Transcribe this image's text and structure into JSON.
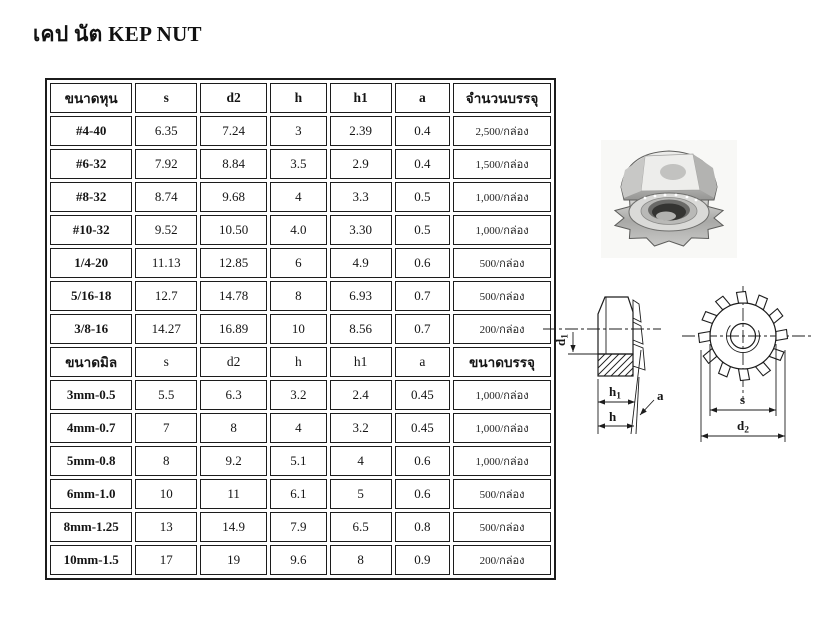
{
  "title": {
    "text": "เคป นัต KEP NUT"
  },
  "table": {
    "imperial": {
      "headers": [
        "ขนาดหุน",
        "s",
        "d2",
        "h",
        "h1",
        "a",
        "จำนวนบรรจุ"
      ],
      "rows": [
        [
          "#4-40",
          "6.35",
          "7.24",
          "3",
          "2.39",
          "0.4",
          "2,500/กล่อง"
        ],
        [
          "#6-32",
          "7.92",
          "8.84",
          "3.5",
          "2.9",
          "0.4",
          "1,500/กล่อง"
        ],
        [
          "#8-32",
          "8.74",
          "9.68",
          "4",
          "3.3",
          "0.5",
          "1,000/กล่อง"
        ],
        [
          "#10-32",
          "9.52",
          "10.50",
          "4.0",
          "3.30",
          "0.5",
          "1,000/กล่อง"
        ],
        [
          "1/4-20",
          "11.13",
          "12.85",
          "6",
          "4.9",
          "0.6",
          "500/กล่อง"
        ],
        [
          "5/16-18",
          "12.7",
          "14.78",
          "8",
          "6.93",
          "0.7",
          "500/กล่อง"
        ],
        [
          "3/8-16",
          "14.27",
          "16.89",
          "10",
          "8.56",
          "0.7",
          "200/กล่อง"
        ]
      ]
    },
    "metric": {
      "headers": [
        "ขนาดมิล",
        "s",
        "d2",
        "h",
        "h1",
        "a",
        "ขนาดบรรจุ"
      ],
      "rows": [
        [
          "3mm-0.5",
          "5.5",
          "6.3",
          "3.2",
          "2.4",
          "0.45",
          "1,000/กล่อง"
        ],
        [
          "4mm-0.7",
          "7",
          "8",
          "4",
          "3.2",
          "0.45",
          "1,000/กล่อง"
        ],
        [
          "5mm-0.8",
          "8",
          "9.2",
          "5.1",
          "4",
          "0.6",
          "1,000/กล่อง"
        ],
        [
          "6mm-1.0",
          "10",
          "11",
          "6.1",
          "5",
          "0.6",
          "500/กล่อง"
        ],
        [
          "8mm-1.25",
          "13",
          "14.9",
          "7.9",
          "6.5",
          "0.8",
          "500/กล่อง"
        ],
        [
          "10mm-1.5",
          "17",
          "19",
          "9.6",
          "8",
          "0.9",
          "200/กล่อง"
        ]
      ]
    }
  },
  "diagram": {
    "d1_main": "d",
    "d1_sub": "1",
    "h1_main": "h",
    "h1_sub": "1",
    "h_label": "h",
    "a_label": "a",
    "s_label": "s",
    "d2_main": "d",
    "d2_sub": "2"
  },
  "colors": {
    "ink": "#1a1a1a",
    "paper": "#ffffff"
  }
}
